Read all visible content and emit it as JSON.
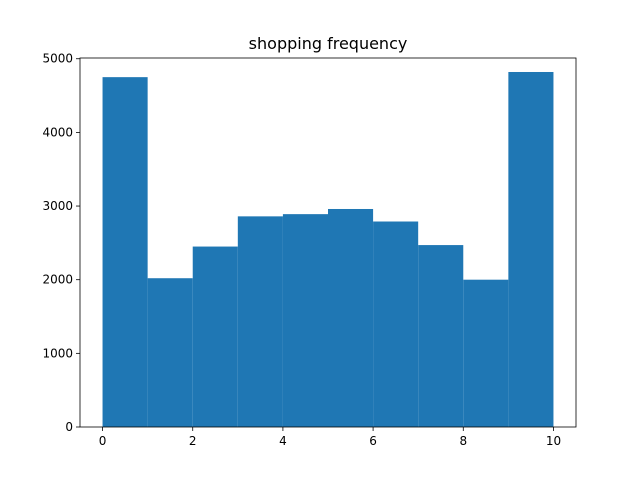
{
  "chart_data": {
    "type": "bar",
    "title": "shopping frequency",
    "xlabel": "",
    "ylabel": "",
    "bins": [
      {
        "x0": 0,
        "x1": 1,
        "value": 4750
      },
      {
        "x0": 1,
        "x1": 2,
        "value": 2020
      },
      {
        "x0": 2,
        "x1": 3,
        "value": 2450
      },
      {
        "x0": 3,
        "x1": 4,
        "value": 2860
      },
      {
        "x0": 4,
        "x1": 5,
        "value": 2890
      },
      {
        "x0": 5,
        "x1": 6,
        "value": 2960
      },
      {
        "x0": 6,
        "x1": 7,
        "value": 2790
      },
      {
        "x0": 7,
        "x1": 8,
        "value": 2470
      },
      {
        "x0": 8,
        "x1": 9,
        "value": 2000
      },
      {
        "x0": 9,
        "x1": 10,
        "value": 4820
      }
    ],
    "xlim": [
      -0.5,
      10.5
    ],
    "ylim": [
      0,
      5010
    ],
    "xticks": [
      0,
      2,
      4,
      6,
      8,
      10
    ],
    "yticks": [
      0,
      1000,
      2000,
      3000,
      4000,
      5000
    ],
    "bar_color": "#1f77b4",
    "grid": false
  }
}
